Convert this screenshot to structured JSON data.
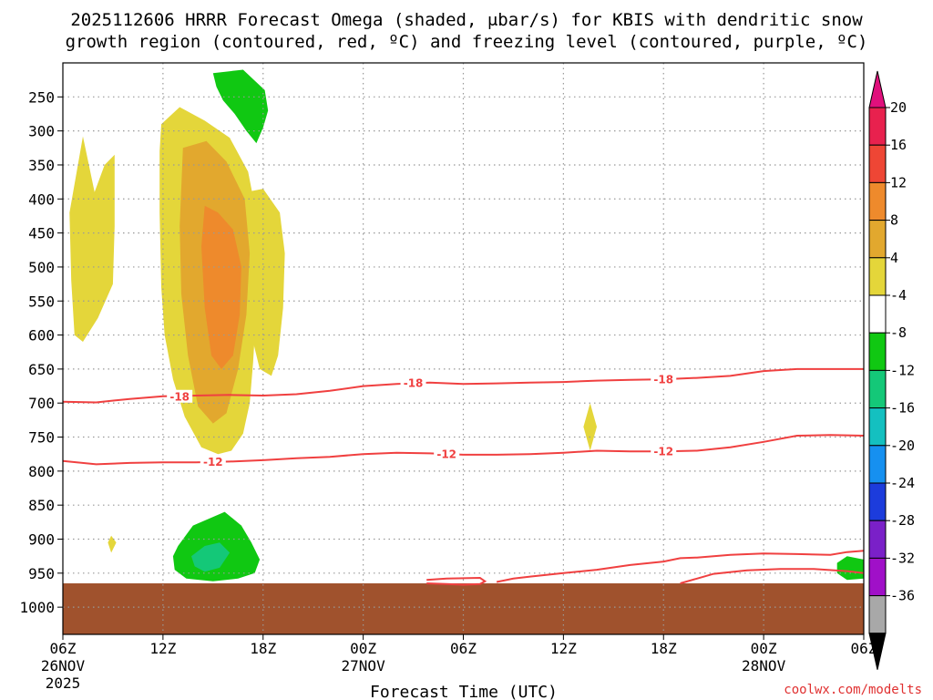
{
  "chart_data": {
    "type": "time-height contour",
    "title_lines": [
      "2025112606 HRRR Forecast Omega (shaded, μbar/s) for KBIS with dendritic snow",
      "growth region (contoured, red, ºC) and freezing level (contoured, purple, ºC)"
    ],
    "xlabel": "Forecast Time (UTC)",
    "credit": "coolwx.com/modelts",
    "x_range_hours": [
      0,
      48
    ],
    "y_range_mb": [
      200,
      1040
    ],
    "x_ticks": [
      {
        "hour": 0,
        "label": "06Z",
        "date": "26NOV",
        "year": "2025"
      },
      {
        "hour": 6,
        "label": "12Z",
        "date": "",
        "year": ""
      },
      {
        "hour": 12,
        "label": "18Z",
        "date": "",
        "year": ""
      },
      {
        "hour": 18,
        "label": "00Z",
        "date": "27NOV",
        "year": ""
      },
      {
        "hour": 24,
        "label": "06Z",
        "date": "",
        "year": ""
      },
      {
        "hour": 30,
        "label": "12Z",
        "date": "",
        "year": ""
      },
      {
        "hour": 36,
        "label": "18Z",
        "date": "",
        "year": ""
      },
      {
        "hour": 42,
        "label": "00Z",
        "date": "28NOV",
        "year": ""
      },
      {
        "hour": 48,
        "label": "06Z",
        "date": "",
        "year": ""
      }
    ],
    "y_ticks": [
      {
        "p": 250,
        "label": "250"
      },
      {
        "p": 300,
        "label": "300"
      },
      {
        "p": 350,
        "label": "350"
      },
      {
        "p": 400,
        "label": "400"
      },
      {
        "p": 450,
        "label": "450"
      },
      {
        "p": 500,
        "label": "500"
      },
      {
        "p": 550,
        "label": "550"
      },
      {
        "p": 600,
        "label": "600"
      },
      {
        "p": 650,
        "label": "650"
      },
      {
        "p": 700,
        "label": "700"
      },
      {
        "p": 750,
        "label": "750"
      },
      {
        "p": 800,
        "label": "800"
      },
      {
        "p": 850,
        "label": "850"
      },
      {
        "p": 900,
        "label": "900"
      },
      {
        "p": 950,
        "label": "950"
      },
      {
        "p": 1000,
        "label": "1000"
      }
    ],
    "colorbar": {
      "labels": [
        "20",
        "16",
        "12",
        "8",
        "4",
        "-4",
        "-8",
        "-12",
        "-16",
        "-20",
        "-24",
        "-28",
        "-32",
        "-36"
      ],
      "colors": [
        "#e8214e",
        "#ee4635",
        "#ee8a2c",
        "#e2a82e",
        "#e4d63a",
        "#ffffff",
        "#10c812",
        "#14c878",
        "#14c0c0",
        "#1690f0",
        "#1c3cdc",
        "#7a20c8",
        "#a010c8",
        "#a8a8a8"
      ],
      "over_color": "#e0107c",
      "under_color": "#000000"
    },
    "colors": {
      "ground": "#a0522d",
      "dgz_contour": "#f04040",
      "grid": "#999999"
    },
    "omega_regions": [
      {
        "band": "4_8",
        "points": [
          [
            5.9,
            290
          ],
          [
            7,
            265
          ],
          [
            8.5,
            285
          ],
          [
            10,
            310
          ],
          [
            11.1,
            360
          ],
          [
            11.5,
            410
          ],
          [
            11.8,
            470
          ],
          [
            11.6,
            560
          ],
          [
            11.4,
            640
          ],
          [
            11.2,
            700
          ],
          [
            10.8,
            745
          ],
          [
            10.1,
            770
          ],
          [
            9.3,
            775
          ],
          [
            8.3,
            765
          ],
          [
            7.3,
            720
          ],
          [
            6.6,
            665
          ],
          [
            6.1,
            600
          ],
          [
            5.9,
            530
          ],
          [
            5.8,
            420
          ],
          [
            5.8,
            330
          ]
        ]
      },
      {
        "band": "4_8",
        "points": [
          [
            11,
            390
          ],
          [
            12,
            385
          ],
          [
            13,
            420
          ],
          [
            13.3,
            480
          ],
          [
            13.2,
            560
          ],
          [
            12.9,
            630
          ],
          [
            12.5,
            660
          ],
          [
            11.8,
            650
          ],
          [
            11.1,
            580
          ],
          [
            10.9,
            480
          ]
        ]
      },
      {
        "band": "4_8",
        "points": [
          [
            0.4,
            420
          ],
          [
            1.2,
            308
          ],
          [
            1.9,
            390
          ],
          [
            2.5,
            350
          ],
          [
            3.1,
            335
          ],
          [
            3.1,
            440
          ],
          [
            3,
            525
          ],
          [
            2.1,
            575
          ],
          [
            1.2,
            610
          ],
          [
            0.7,
            600
          ],
          [
            0.5,
            520
          ]
        ]
      },
      {
        "band": "8_12",
        "points": [
          [
            7.2,
            325
          ],
          [
            8.6,
            315
          ],
          [
            9.8,
            345
          ],
          [
            10.9,
            400
          ],
          [
            11.2,
            480
          ],
          [
            11,
            570
          ],
          [
            10.5,
            650
          ],
          [
            9.8,
            715
          ],
          [
            9,
            730
          ],
          [
            8.1,
            705
          ],
          [
            7.5,
            630
          ],
          [
            7.1,
            540
          ],
          [
            7,
            440
          ]
        ]
      },
      {
        "band": "12_16",
        "points": [
          [
            8.5,
            410
          ],
          [
            9.3,
            420
          ],
          [
            10.2,
            445
          ],
          [
            10.7,
            500
          ],
          [
            10.6,
            570
          ],
          [
            10.2,
            630
          ],
          [
            9.5,
            650
          ],
          [
            8.9,
            630
          ],
          [
            8.5,
            560
          ],
          [
            8.3,
            470
          ]
        ]
      },
      {
        "band": "4_8",
        "points": [
          [
            31.6,
            700
          ],
          [
            32,
            735
          ],
          [
            31.6,
            770
          ],
          [
            31.2,
            735
          ]
        ]
      },
      {
        "band": "4_8",
        "points": [
          [
            2.9,
            895
          ],
          [
            3.2,
            905
          ],
          [
            2.9,
            920
          ],
          [
            2.7,
            905
          ]
        ]
      },
      {
        "band": "m4_m8",
        "points": [
          [
            9,
            215
          ],
          [
            10.8,
            210
          ],
          [
            12.1,
            240
          ],
          [
            12.3,
            270
          ],
          [
            12,
            295
          ],
          [
            11.6,
            318
          ],
          [
            11,
            300
          ],
          [
            10.3,
            275
          ],
          [
            9.6,
            255
          ],
          [
            9.2,
            235
          ]
        ]
      },
      {
        "band": "m4_m8",
        "points": [
          [
            6.9,
            910
          ],
          [
            7.8,
            880
          ],
          [
            9.7,
            860
          ],
          [
            10.7,
            880
          ],
          [
            11.3,
            905
          ],
          [
            11.8,
            930
          ],
          [
            11.5,
            950
          ],
          [
            10.5,
            958
          ],
          [
            9,
            962
          ],
          [
            7.4,
            958
          ],
          [
            6.7,
            945
          ],
          [
            6.6,
            925
          ]
        ]
      },
      {
        "band": "m8_m12",
        "points": [
          [
            7.7,
            925
          ],
          [
            8.5,
            910
          ],
          [
            9.4,
            905
          ],
          [
            10,
            920
          ],
          [
            9.4,
            942
          ],
          [
            8.5,
            948
          ],
          [
            7.9,
            940
          ]
        ]
      },
      {
        "band": "m4_m8",
        "points": [
          [
            46.4,
            935
          ],
          [
            47,
            925
          ],
          [
            48,
            930
          ],
          [
            48,
            958
          ],
          [
            47,
            960
          ],
          [
            46.4,
            950
          ]
        ]
      }
    ],
    "ground": {
      "p_top": 965,
      "p_bottom": 1040
    },
    "dgz_contours": [
      {
        "label": "-18",
        "points": [
          [
            0,
            698
          ],
          [
            2,
            699
          ],
          [
            4,
            694
          ],
          [
            6,
            690
          ],
          [
            8,
            689
          ],
          [
            10,
            688
          ],
          [
            12,
            689
          ],
          [
            14,
            687
          ],
          [
            16,
            682
          ],
          [
            18,
            675
          ],
          [
            20,
            672
          ],
          [
            22,
            670
          ],
          [
            24,
            672
          ],
          [
            26,
            671
          ],
          [
            28,
            670
          ],
          [
            30,
            669
          ],
          [
            32,
            667
          ],
          [
            34,
            666
          ],
          [
            36,
            665
          ],
          [
            38,
            663
          ],
          [
            40,
            660
          ],
          [
            42,
            653
          ],
          [
            44,
            650
          ],
          [
            46,
            650
          ],
          [
            48,
            650
          ]
        ],
        "label_at": [
          [
            7,
            690
          ],
          [
            21,
            670
          ],
          [
            36,
            665
          ]
        ]
      },
      {
        "label": "-12",
        "points": [
          [
            0,
            785
          ],
          [
            2,
            790
          ],
          [
            4,
            788
          ],
          [
            6,
            787
          ],
          [
            8,
            787
          ],
          [
            10,
            786
          ],
          [
            12,
            784
          ],
          [
            14,
            781
          ],
          [
            16,
            779
          ],
          [
            18,
            775
          ],
          [
            20,
            773
          ],
          [
            22,
            774
          ],
          [
            24,
            776
          ],
          [
            26,
            776
          ],
          [
            28,
            775
          ],
          [
            30,
            773
          ],
          [
            32,
            770
          ],
          [
            34,
            771
          ],
          [
            36,
            771
          ],
          [
            38,
            770
          ],
          [
            40,
            765
          ],
          [
            42,
            757
          ],
          [
            44,
            748
          ],
          [
            46,
            747
          ],
          [
            48,
            748
          ]
        ],
        "label_at": [
          [
            9,
            786
          ],
          [
            23,
            775
          ],
          [
            36,
            771
          ]
        ]
      },
      {
        "label": "",
        "points": [
          [
            21.8,
            960
          ],
          [
            23,
            958
          ],
          [
            25,
            957
          ],
          [
            25.3,
            962
          ],
          [
            25,
            966
          ],
          [
            24,
            967
          ],
          [
            23,
            966
          ],
          [
            21.8,
            965
          ]
        ],
        "label_at": []
      },
      {
        "label": "",
        "points": [
          [
            37,
            965
          ],
          [
            39,
            951
          ],
          [
            41,
            946
          ],
          [
            43,
            944
          ],
          [
            45,
            944
          ],
          [
            47,
            947
          ],
          [
            48,
            950
          ]
        ],
        "label_at": []
      },
      {
        "label": "",
        "points": [
          [
            26,
            963
          ],
          [
            27,
            958
          ],
          [
            28,
            955
          ],
          [
            30,
            950
          ],
          [
            32,
            945
          ],
          [
            34,
            938
          ],
          [
            36,
            933
          ],
          [
            37,
            928
          ],
          [
            38,
            927
          ],
          [
            40,
            923
          ],
          [
            42,
            921
          ],
          [
            44,
            922
          ],
          [
            46,
            923
          ],
          [
            47,
            919
          ],
          [
            48,
            917
          ]
        ],
        "label_at": []
      }
    ]
  }
}
